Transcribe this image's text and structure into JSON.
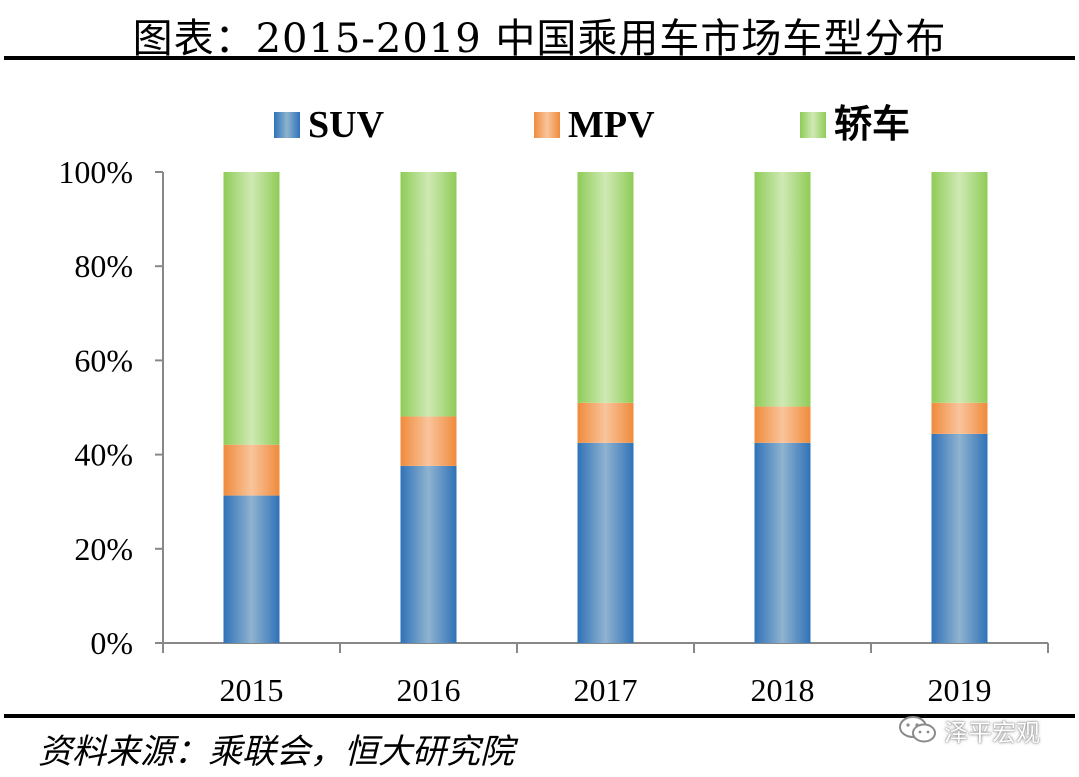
{
  "header": {
    "title": "图表：2015-2019 中国乘用车市场车型分布"
  },
  "footer": {
    "source": "资料来源：乘联会，恒大研究院",
    "watermark": "泽平宏观"
  },
  "chart_data": {
    "type": "bar",
    "stacked": true,
    "title": "图表：2015-2019 中国乘用车市场车型分布",
    "xlabel": "",
    "ylabel": "",
    "categories": [
      "2015",
      "2016",
      "2017",
      "2018",
      "2019"
    ],
    "series": [
      {
        "name": "SUV",
        "values": [
          31.3,
          37.6,
          42.5,
          42.5,
          44.4
        ],
        "color": "#4a86c0"
      },
      {
        "name": "MPV",
        "values": [
          10.8,
          10.5,
          8.5,
          7.7,
          6.6
        ],
        "color": "#f4a261"
      },
      {
        "name": "轿车",
        "values": [
          57.9,
          51.9,
          49.0,
          49.8,
          49.0
        ],
        "color": "#a8d67a"
      }
    ],
    "ylim": [
      0,
      100
    ],
    "yticks": [
      "0%",
      "20%",
      "40%",
      "60%",
      "80%",
      "100%"
    ],
    "grid": false,
    "legend": "top"
  }
}
